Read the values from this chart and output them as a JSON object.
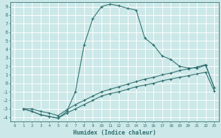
{
  "xlabel": "Humidex (Indice chaleur)",
  "xlim": [
    -0.5,
    23.5
  ],
  "ylim": [
    -4.5,
    9.5
  ],
  "xticks": [
    0,
    1,
    2,
    3,
    4,
    5,
    6,
    7,
    8,
    9,
    10,
    11,
    12,
    13,
    14,
    15,
    16,
    17,
    18,
    19,
    20,
    21,
    22,
    23
  ],
  "yticks": [
    -4,
    -3,
    -2,
    -1,
    0,
    1,
    2,
    3,
    4,
    5,
    6,
    7,
    8,
    9
  ],
  "bg_color": "#cce8e8",
  "grid_color": "#ffffff",
  "line_color": "#2e6e6e",
  "lines": [
    {
      "x": [
        1,
        2,
        3,
        4,
        5,
        6,
        7,
        8,
        9,
        10,
        11,
        12,
        13,
        14,
        15,
        16,
        17,
        18,
        19,
        20,
        21,
        22,
        23
      ],
      "y": [
        -3,
        -3.3,
        -3.7,
        -3.9,
        -4.1,
        -3.3,
        -1.0,
        4.5,
        7.6,
        9.0,
        9.3,
        9.1,
        8.8,
        8.6,
        5.3,
        4.5,
        3.2,
        2.8,
        2.0,
        1.8,
        1.8,
        2.1,
        -0.5
      ]
    },
    {
      "x": [
        1,
        2,
        3,
        4,
        5,
        6,
        7,
        8,
        9,
        10,
        11,
        12,
        13,
        14,
        15,
        16,
        17,
        18,
        19,
        20,
        21,
        22,
        23
      ],
      "y": [
        -3.0,
        -3.3,
        -3.7,
        -3.9,
        -4.1,
        -3.5,
        -3.0,
        -2.5,
        -2.0,
        -1.5,
        -1.2,
        -1.0,
        -0.7,
        -0.4,
        -0.2,
        0.0,
        0.3,
        0.5,
        0.7,
        0.9,
        1.1,
        1.3,
        -0.9
      ]
    },
    {
      "x": [
        1,
        2,
        3,
        4,
        5,
        6,
        7,
        8,
        9,
        10,
        11,
        12,
        13,
        14,
        15,
        16,
        17,
        18,
        19,
        20,
        21,
        22,
        23
      ],
      "y": [
        -3.0,
        -3.0,
        -3.3,
        -3.5,
        -3.8,
        -3.1,
        -2.5,
        -2.0,
        -1.5,
        -1.0,
        -0.7,
        -0.4,
        -0.1,
        0.2,
        0.5,
        0.7,
        1.0,
        1.2,
        1.5,
        1.7,
        1.9,
        2.2,
        -0.5
      ]
    }
  ]
}
